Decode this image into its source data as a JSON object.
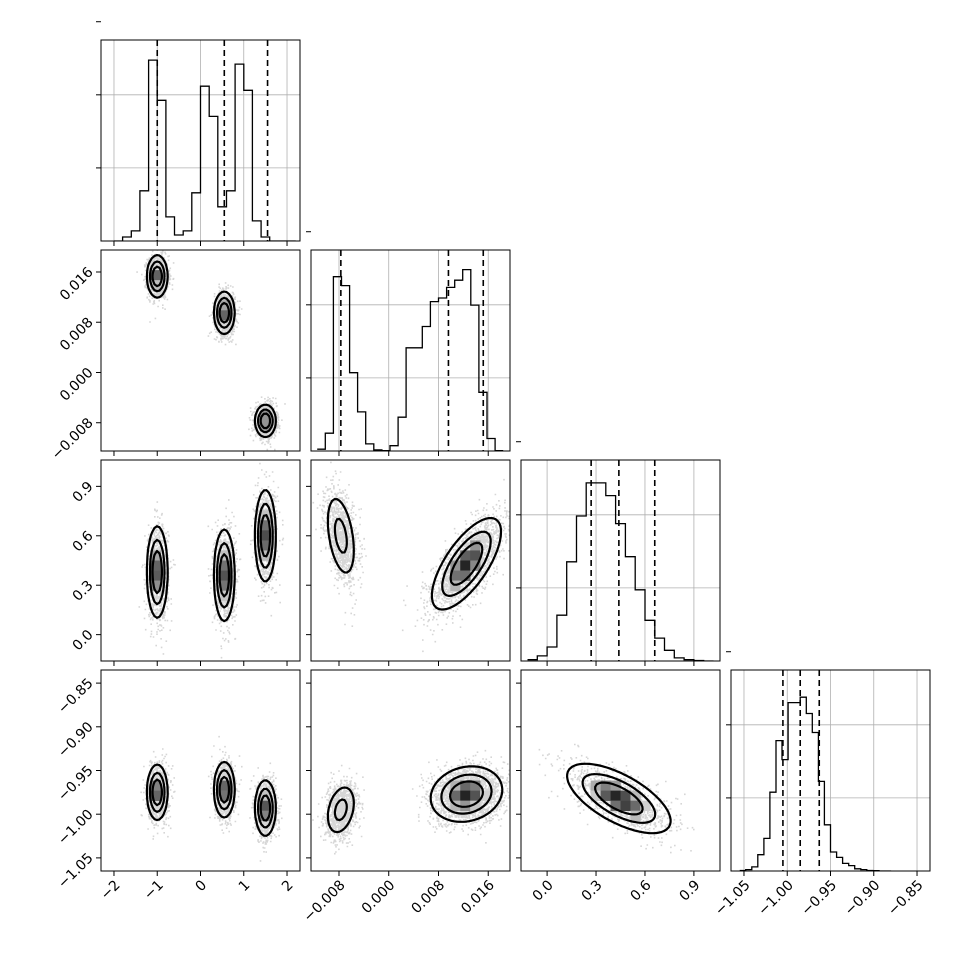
{
  "chart_data": {
    "type": "corner",
    "parameters": [
      {
        "range": [
          -2.3,
          2.3
        ],
        "ticks": [
          -2,
          -1,
          0,
          1,
          2
        ],
        "tick_labels": [
          "−2",
          "−1",
          "0",
          "1",
          "2"
        ]
      },
      {
        "range": [
          -0.0125,
          0.0195
        ],
        "ticks": [
          -0.008,
          0.0,
          0.008,
          0.016
        ],
        "tick_labels": [
          "−0.008",
          "0.000",
          "0.008",
          "0.016"
        ]
      },
      {
        "range": [
          -0.16,
          1.06
        ],
        "ticks": [
          0.0,
          0.3,
          0.6,
          0.9
        ],
        "tick_labels": [
          "0.0",
          "0.3",
          "0.6",
          "0.9"
        ]
      },
      {
        "range": [
          -1.065,
          -0.835
        ],
        "ticks": [
          -1.05,
          -1.0,
          -0.95,
          -0.9,
          -0.85
        ],
        "tick_labels": [
          "−1.05",
          "−1.00",
          "−0.95",
          "−0.90",
          "−0.85"
        ]
      }
    ],
    "marginals": [
      {
        "quantiles": [
          -1.0,
          0.55,
          1.55
        ],
        "bin_edges": [
          -2.0,
          -1.8,
          -1.6,
          -1.4,
          -1.2,
          -1.0,
          -0.8,
          -0.6,
          -0.4,
          -0.2,
          0.0,
          0.2,
          0.4,
          0.6,
          0.8,
          1.0,
          1.2,
          1.4,
          1.6,
          1.8,
          2.0,
          2.2
        ],
        "counts": [
          0,
          10,
          25,
          125,
          450,
          350,
          60,
          15,
          25,
          120,
          385,
          310,
          85,
          125,
          440,
          375,
          50,
          10,
          0,
          0,
          0
        ],
        "ymax": 500
      },
      {
        "quantiles": [
          -0.0077,
          0.0096,
          0.0152
        ],
        "bin_edges": [
          -0.0115,
          -0.0102,
          -0.0089,
          -0.0076,
          -0.0063,
          -0.005,
          -0.0037,
          -0.0024,
          -0.0011,
          0.0002,
          0.0015,
          0.0028,
          0.0041,
          0.0054,
          0.0067,
          0.008,
          0.0093,
          0.0106,
          0.0119,
          0.0132,
          0.0145,
          0.0158,
          0.0171,
          0.0184
        ],
        "counts": [
          5,
          50,
          490,
          465,
          220,
          110,
          20,
          3,
          1,
          15,
          95,
          290,
          290,
          350,
          420,
          430,
          460,
          480,
          510,
          410,
          165,
          35,
          1
        ],
        "ymax": 565
      },
      {
        "quantiles": [
          0.27,
          0.44,
          0.66
        ],
        "bin_edges": [
          -0.12,
          -0.06,
          0.0,
          0.06,
          0.12,
          0.18,
          0.24,
          0.3,
          0.36,
          0.42,
          0.48,
          0.54,
          0.6,
          0.66,
          0.72,
          0.78,
          0.84,
          0.9,
          0.96,
          1.02
        ],
        "counts": [
          5,
          20,
          55,
          180,
          390,
          570,
          700,
          700,
          650,
          540,
          410,
          280,
          160,
          90,
          42,
          12,
          5,
          2,
          0
        ],
        "ymax": 790
      },
      {
        "quantiles": [
          -1.005,
          -0.985,
          -0.963
        ],
        "bin_edges": [
          -1.055,
          -1.048,
          -1.041,
          -1.034,
          -1.027,
          -1.02,
          -1.013,
          -1.006,
          -0.999,
          -0.992,
          -0.985,
          -0.978,
          -0.971,
          -0.964,
          -0.957,
          -0.95,
          -0.943,
          -0.936,
          -0.929,
          -0.922,
          -0.915,
          -0.908,
          -0.901,
          -0.894,
          -0.887,
          -0.88
        ],
        "counts": [
          2,
          5,
          15,
          60,
          120,
          290,
          480,
          410,
          620,
          620,
          640,
          580,
          510,
          330,
          170,
          70,
          50,
          28,
          20,
          8,
          5,
          2,
          1,
          0,
          0
        ],
        "ymax": 740
      }
    ],
    "joint": [
      {
        "x": 0,
        "y": 1,
        "blobs": [
          {
            "mx": -1.0,
            "my": 0.0153,
            "sx": 0.12,
            "sy": 0.0017,
            "rho": 0,
            "w": 1
          },
          {
            "mx": 0.55,
            "my": 0.0095,
            "sx": 0.12,
            "sy": 0.0017,
            "rho": 0,
            "w": 1
          },
          {
            "mx": 1.5,
            "my": -0.0077,
            "sx": 0.12,
            "sy": 0.0013,
            "rho": 0,
            "w": 1
          }
        ]
      },
      {
        "x": 0,
        "y": 2,
        "blobs": [
          {
            "mx": -1.0,
            "my": 0.38,
            "sx": 0.12,
            "sy": 0.14,
            "rho": 0,
            "w": 1
          },
          {
            "mx": 0.55,
            "my": 0.36,
            "sx": 0.12,
            "sy": 0.14,
            "rho": 0,
            "w": 1
          },
          {
            "mx": 1.5,
            "my": 0.6,
            "sx": 0.12,
            "sy": 0.14,
            "rho": 0,
            "w": 1
          }
        ]
      },
      {
        "x": 0,
        "y": 3,
        "blobs": [
          {
            "mx": -1.0,
            "my": -0.975,
            "sx": 0.12,
            "sy": 0.016,
            "rho": 0,
            "w": 1
          },
          {
            "mx": 0.55,
            "my": -0.972,
            "sx": 0.12,
            "sy": 0.016,
            "rho": 0,
            "w": 1
          },
          {
            "mx": 1.5,
            "my": -0.993,
            "sx": 0.12,
            "sy": 0.016,
            "rho": 0,
            "w": 1
          }
        ]
      },
      {
        "x": 1,
        "y": 2,
        "blobs": [
          {
            "mx": -0.0077,
            "my": 0.6,
            "sx": 0.0013,
            "sy": 0.14,
            "rho": -0.4,
            "w": 1
          },
          {
            "mx": 0.0125,
            "my": 0.43,
            "sx": 0.0028,
            "sy": 0.14,
            "rho": 0.7,
            "w": 2
          }
        ]
      },
      {
        "x": 1,
        "y": 3,
        "blobs": [
          {
            "mx": -0.0077,
            "my": -0.995,
            "sx": 0.0013,
            "sy": 0.016,
            "rho": 0.3,
            "w": 1
          },
          {
            "mx": 0.0125,
            "my": -0.977,
            "sx": 0.0029,
            "sy": 0.016,
            "rho": 0.15,
            "w": 2
          }
        ]
      },
      {
        "x": 2,
        "y": 3,
        "blobs": [
          {
            "mx": 0.44,
            "my": -0.982,
            "sx": 0.16,
            "sy": 0.02,
            "rho": -0.65,
            "w": 1
          }
        ]
      }
    ]
  }
}
